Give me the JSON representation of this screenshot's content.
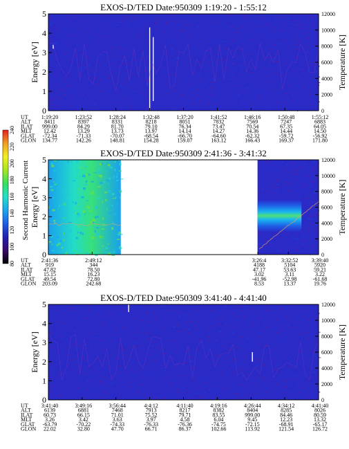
{
  "colorbar": {
    "label": "Second Harmonic Current",
    "ticks": [
      "80",
      "100",
      "120",
      "140",
      "160",
      "180",
      "200",
      "220",
      "240"
    ],
    "range": [
      80,
      240
    ],
    "colors": [
      "#000000",
      "#3a0a6a",
      "#2020b0",
      "#1e5fe6",
      "#19a6f0",
      "#21e0c8",
      "#33e060",
      "#a8e61e",
      "#f0f020",
      "#f0a020",
      "#e82020"
    ]
  },
  "eph_labels": [
    "UT",
    "ALT",
    "ILAT",
    "MLT",
    "GLAT",
    "GLON"
  ],
  "chart_data": [
    {
      "type": "heatmap",
      "title": "EXOS-D/TED   Date:950309   1:19:20 - 1:55:12",
      "ylabel_left": "Energy [eV]",
      "ylabel_right": "Temperature [K]",
      "ylim_left": [
        0,
        5
      ],
      "ylim_right": [
        0,
        12000
      ],
      "yticks_left": [
        "0",
        "1",
        "2",
        "3",
        "4",
        "5"
      ],
      "yticks_right": [
        "0",
        "2000",
        "4000",
        "6000",
        "8000",
        "10000",
        "12000"
      ],
      "background_color": "#2828c8",
      "data_segments": [
        {
          "x_start": 0.0,
          "x_end": 1.0,
          "level": "low"
        }
      ],
      "spikes": [
        {
          "x": 0.018,
          "y_lo": 3.2,
          "y_hi": 3.4
        },
        {
          "x": 0.375,
          "y_lo": 0.05,
          "y_hi": 4.3
        },
        {
          "x": 0.388,
          "y_lo": 0.5,
          "y_hi": 3.8
        }
      ],
      "ephemeris": {
        "x": [
          0.0,
          0.125,
          0.25,
          0.375,
          0.5,
          0.625,
          0.75,
          0.875,
          1.0
        ],
        "UT": [
          "1:19:20",
          "1:23:52",
          "1:28:24",
          "1:32:48",
          "1:37:20",
          "1:41:52",
          "1:46:16",
          "1:50:48",
          "1:55:12"
        ],
        "ALT": [
          "8411",
          "8397",
          "8331",
          "8218",
          "8051",
          "7832",
          "7569",
          "7247",
          "6883"
        ],
        "ILAT": [
          "999.00",
          "84.29",
          "81.70",
          "79.10",
          "76.34",
          "73.47",
          "70.54",
          "67.35",
          "64.05"
        ],
        "MLT": [
          "12.42",
          "13.29",
          "13.73",
          "13.97",
          "14.14",
          "14.27",
          "14.36",
          "14.44",
          "14.50"
        ],
        "GLAT": [
          "-72.34",
          "-71.33",
          "-70.07",
          "-68.54",
          "-66.70",
          "-64.60",
          "-62.32",
          "-59.72",
          "-56.92"
        ],
        "GLON": [
          "134.77",
          "142.26",
          "148.81",
          "154.28",
          "159.07",
          "163.12",
          "166.43",
          "169.37",
          "171.80"
        ]
      }
    },
    {
      "type": "heatmap",
      "title": "EXOS-D/TED   Date:950309   2:41:36 - 3:41:32",
      "ylabel_left": "Energy [eV]",
      "ylabel_right": "Temperature [K]",
      "ylim_left": [
        0,
        5
      ],
      "ylim_right": [
        0,
        12000
      ],
      "yticks_left": [
        "0",
        "1",
        "2",
        "3",
        "4",
        "5"
      ],
      "yticks_right": [
        "0",
        "2000",
        "4000",
        "6000",
        "8000",
        "10000",
        "12000"
      ],
      "background_color": "#ffffff",
      "data_segments": [
        {
          "x_start": 0.0,
          "x_end": 0.268,
          "level": "high"
        },
        {
          "x_start": 0.774,
          "x_end": 1.0,
          "level": "band"
        }
      ],
      "ephemeris": {
        "x": [
          0.0,
          0.162,
          0.775,
          0.888,
          1.0
        ],
        "UT": [
          "2:41:36",
          "2:49:12",
          "3:26:4",
          "3:32:52",
          "3:39:40"
        ],
        "ALT": [
          "919",
          "344",
          "4188",
          "5104",
          "5920"
        ],
        "ILAT": [
          "47.82",
          "78.50",
          "47.17",
          "53.63",
          "59.21"
        ],
        "MLT": [
          "15.15",
          "16.23",
          "3.02",
          "3.11",
          "3.22"
        ],
        "GLAT": [
          "49.54",
          "72.80",
          "-41.96",
          "-52.98",
          "-61.68"
        ],
        "GLON": [
          "203.09",
          "242.68",
          "8.53",
          "13.37",
          "19.76"
        ]
      }
    },
    {
      "type": "heatmap",
      "title": "EXOS-D/TED   Date:950309   3:41:40 - 4:41:40",
      "ylabel_left": "Energy [eV]",
      "ylabel_right": "Temperature [K]",
      "ylim_left": [
        0,
        5
      ],
      "ylim_right": [
        0,
        12000
      ],
      "yticks_left": [
        "0",
        "1",
        "2",
        "3",
        "4",
        "5"
      ],
      "yticks_right": [
        "0",
        "2000",
        "4000",
        "6000",
        "8000",
        "10000",
        "12000"
      ],
      "background_color": "#2828c8",
      "data_segments": [
        {
          "x_start": 0.0,
          "x_end": 1.0,
          "level": "low"
        }
      ],
      "spikes": [
        {
          "x": 0.297,
          "y_lo": 4.6,
          "y_hi": 5.0
        },
        {
          "x": 0.755,
          "y_lo": 2.0,
          "y_hi": 2.5
        }
      ],
      "ephemeris": {
        "x": [
          0.0,
          0.125,
          0.25,
          0.375,
          0.5,
          0.625,
          0.75,
          0.875,
          1.0
        ],
        "UT": [
          "3:41:40",
          "3:49:16",
          "3:56:44",
          "4:4:12",
          "4:11:40",
          "4:19:16",
          "4:26:44",
          "4:34:12",
          "4:41:40"
        ],
        "ALT": [
          "6139",
          "6881",
          "7468",
          "7913",
          "8217",
          "8382",
          "8404",
          "8285",
          "8026"
        ],
        "ILAT": [
          "60.73",
          "66.15",
          "71.01",
          "75.52",
          "79.71",
          "83.55",
          "999.00",
          "84.46",
          "80.59"
        ],
        "MLT": [
          "3.26",
          "3.42",
          "3.63",
          "3.97",
          "4.58",
          "6.04",
          "9.45",
          "12.23",
          "13.32"
        ],
        "GLAT": [
          "-63.79",
          "-70.22",
          "-74.33",
          "-76.33",
          "-76.36",
          "-74.75",
          "-72.15",
          "-68.91",
          "-65.17"
        ],
        "GLON": [
          "22.02",
          "32.80",
          "47.70",
          "66.71",
          "86.37",
          "102.66",
          "113.92",
          "121.54",
          "126.72"
        ]
      }
    }
  ]
}
